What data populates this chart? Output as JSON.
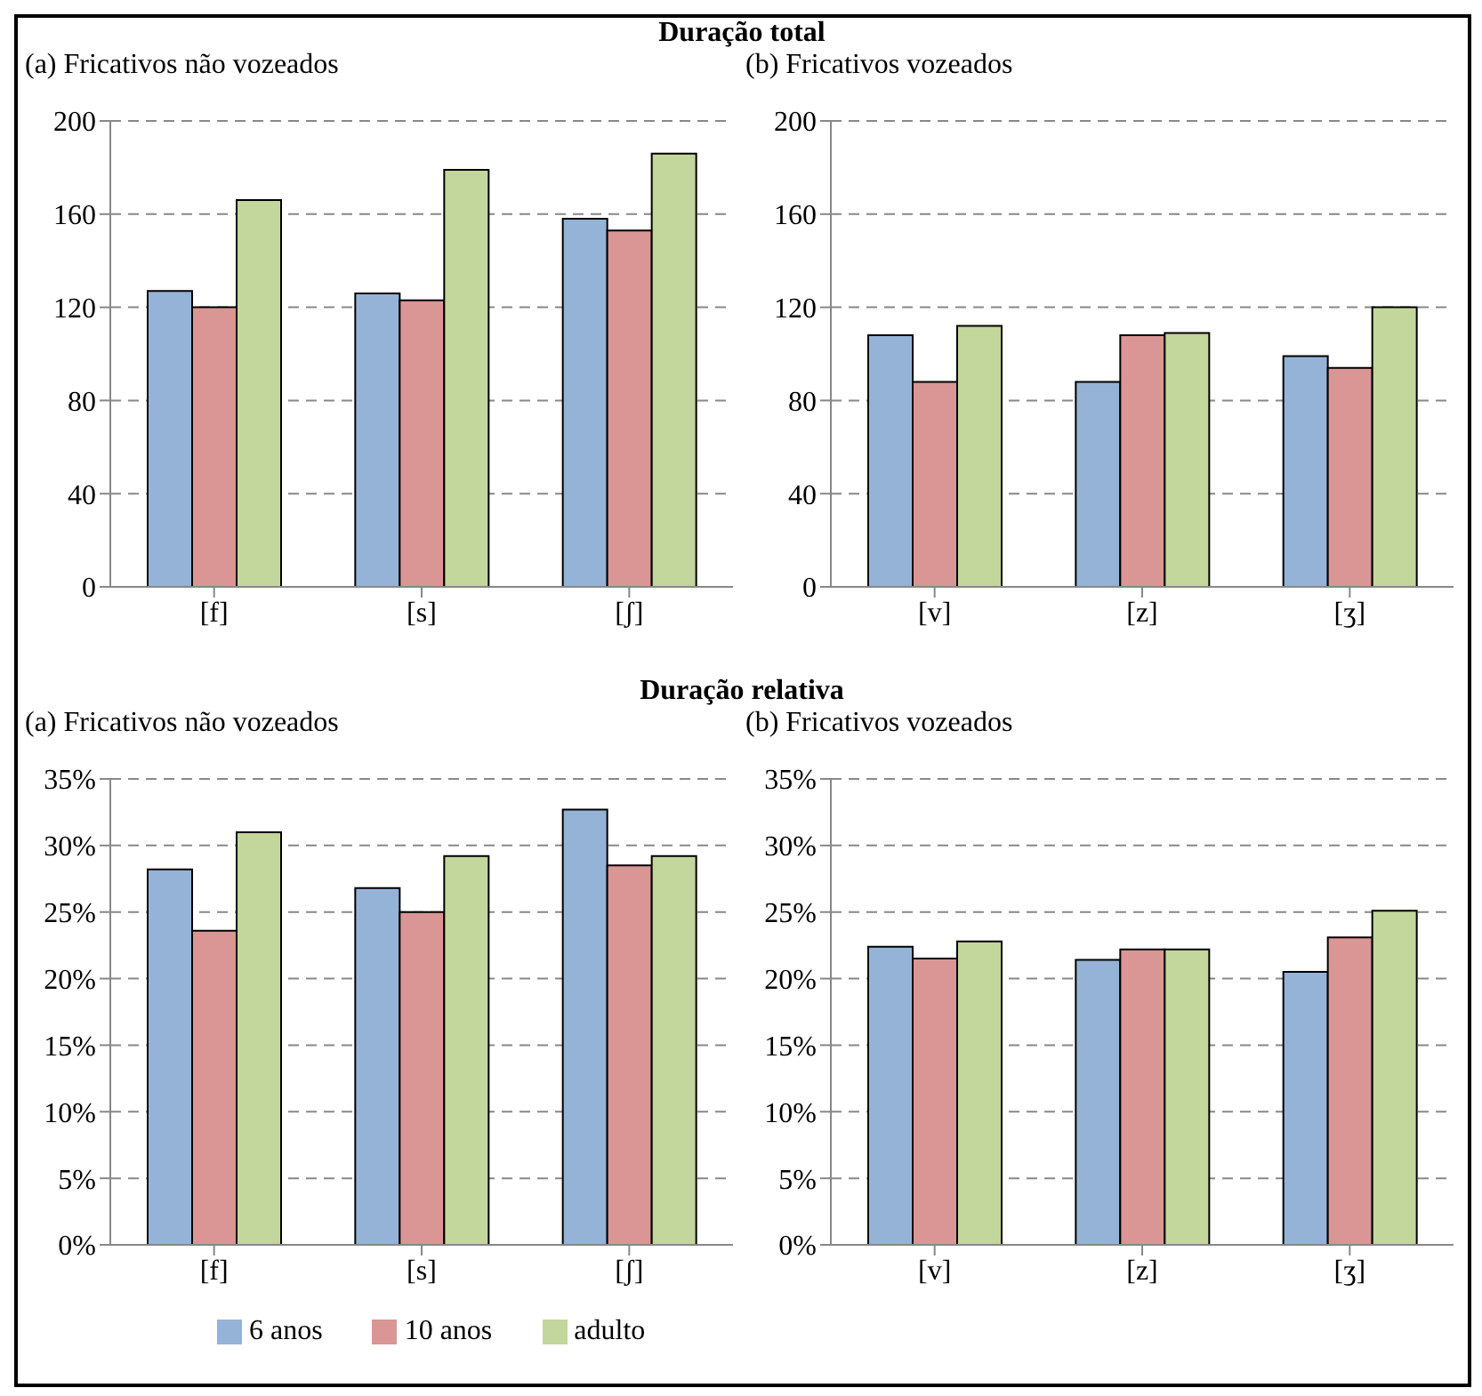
{
  "chart_data": [
    {
      "type": "bar",
      "title": "Duração total",
      "subtitle": "(a) Fricativos não vozeados",
      "categories": [
        "[f]",
        "[s]",
        "[ʃ]"
      ],
      "series": [
        {
          "color": "#95b3d7",
          "values": [
            127,
            126,
            158
          ]
        },
        {
          "color": "#d99694",
          "values": [
            120,
            123,
            153
          ]
        },
        {
          "color": "#c3d69b",
          "values": [
            166,
            179,
            186
          ]
        }
      ],
      "ylim": [
        0,
        200
      ],
      "yticks": [
        0,
        40,
        80,
        120,
        160,
        200
      ],
      "grid": "y",
      "legend": false
    },
    {
      "type": "bar",
      "subtitle": "(b) Fricativos vozeados",
      "categories": [
        "[v]",
        "[z]",
        "[ʒ]"
      ],
      "series": [
        {
          "color": "#95b3d7",
          "values": [
            108,
            88,
            99
          ]
        },
        {
          "color": "#d99694",
          "values": [
            88,
            108,
            94
          ]
        },
        {
          "color": "#c3d69b",
          "values": [
            112,
            109,
            120
          ]
        }
      ],
      "ylim": [
        0,
        200
      ],
      "yticks": [
        0,
        40,
        80,
        120,
        160,
        200
      ],
      "grid": "y",
      "legend": false
    },
    {
      "type": "bar",
      "title": "Duração relativa",
      "subtitle": "(a) Fricativos não vozeados",
      "categories": [
        "[f]",
        "[s]",
        "[ʃ]"
      ],
      "series": [
        {
          "color": "#95b3d7",
          "values": [
            28.2,
            26.8,
            32.7
          ]
        },
        {
          "color": "#d99694",
          "values": [
            23.6,
            25,
            28.5
          ]
        },
        {
          "color": "#c3d69b",
          "values": [
            31,
            29.2,
            29.2
          ]
        }
      ],
      "ylim": [
        0,
        35
      ],
      "yticks": [
        {
          "value": 0,
          "label": "0%"
        },
        {
          "value": 5,
          "label": "5%"
        },
        {
          "value": 10,
          "label": "10%"
        },
        {
          "value": 15,
          "label": "15%"
        },
        {
          "value": 20,
          "label": "20%"
        },
        {
          "value": 25,
          "label": "25%"
        },
        {
          "value": 30,
          "label": "30%"
        },
        {
          "value": 35,
          "label": "35%"
        }
      ],
      "grid": "y",
      "legend": false
    },
    {
      "type": "bar",
      "subtitle": "(b) Fricativos vozeados",
      "categories": [
        "[v]",
        "[z]",
        "[ʒ]"
      ],
      "series": [
        {
          "name": "6 anos",
          "color": "#95b3d7",
          "values": [
            22.4,
            21.4,
            20.5
          ]
        },
        {
          "name": "10 anos",
          "color": "#d99694",
          "values": [
            21.5,
            22.2,
            23.1
          ]
        },
        {
          "name": "adulto",
          "color": "#c3d69b",
          "values": [
            22.8,
            22.2,
            25.1
          ]
        }
      ],
      "ylim": [
        0,
        35
      ],
      "yticks": [
        {
          "value": 0,
          "label": "0%"
        },
        {
          "value": 5,
          "label": "5%"
        },
        {
          "value": 10,
          "label": "10%"
        },
        {
          "value": 15,
          "label": "15%"
        },
        {
          "value": 20,
          "label": "20%"
        },
        {
          "value": 25,
          "label": "25%"
        },
        {
          "value": 30,
          "label": "30%"
        },
        {
          "value": 35,
          "label": "35%"
        }
      ],
      "grid": "y",
      "legend": "bottom"
    }
  ]
}
